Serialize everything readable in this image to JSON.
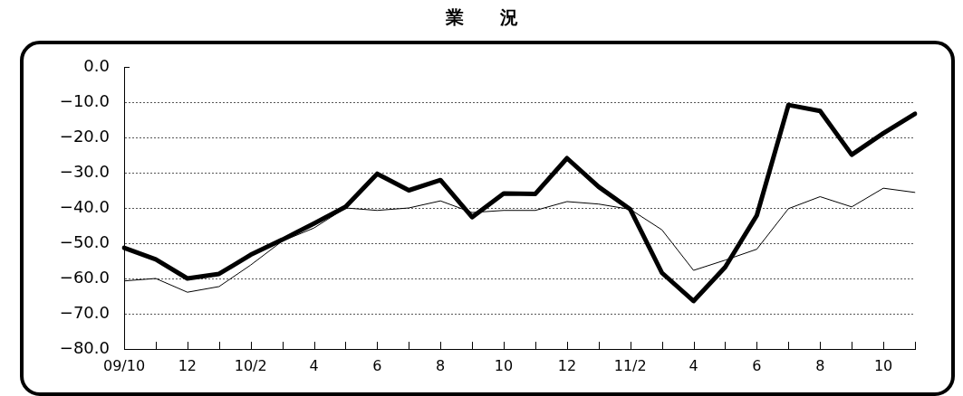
{
  "chart_data": {
    "type": "line",
    "title": "業　　況",
    "categories": [
      "09/10",
      null,
      "12",
      null,
      "10/2",
      null,
      "4",
      null,
      "6",
      null,
      "8",
      null,
      "10",
      null,
      "12",
      null,
      "11/2",
      null,
      "4",
      null,
      "6",
      null,
      "8",
      null,
      "10",
      null
    ],
    "series": [
      {
        "color": "#000000",
        "values": [
          -51.3,
          -54.6,
          -60.0,
          -58.7,
          -53.3,
          -49.0,
          -44.4,
          -39.7,
          -30.3,
          -35.0,
          -32.1,
          -42.6,
          -35.9,
          -36.0,
          -25.9,
          -34.0,
          -40.4,
          -58.4,
          -66.4,
          -56.8,
          -42.1,
          -10.8,
          -12.5,
          -24.9,
          -18.8,
          -13.3
        ]
      },
      {
        "color": "#000000",
        "values": [
          -60.7,
          -60.0,
          -63.9,
          -62.3,
          -56.2,
          -49.4,
          -45.7,
          -40.0,
          -40.7,
          -40.0,
          -38.0,
          -41.3,
          -40.7,
          -40.7,
          -38.2,
          -38.9,
          -40.4,
          -46.2,
          -57.7,
          -54.8,
          -51.7,
          -40.2,
          -36.8,
          -39.7,
          -34.4,
          -35.6
        ]
      }
    ],
    "ylim": [
      -80,
      0
    ],
    "yticks": [
      {
        "value": 0,
        "label": "0.0"
      },
      {
        "value": -10,
        "label": "−10.0"
      },
      {
        "value": -20,
        "label": "−20.0"
      },
      {
        "value": -30,
        "label": "−30.0"
      },
      {
        "value": -40,
        "label": "−40.0"
      },
      {
        "value": -50,
        "label": "−50.0"
      },
      {
        "value": -60,
        "label": "−60.0"
      },
      {
        "value": -70,
        "label": "−70.0"
      },
      {
        "value": -80,
        "label": "−80.0"
      }
    ],
    "grid": "y",
    "marker": "none",
    "line_style": "solid"
  }
}
